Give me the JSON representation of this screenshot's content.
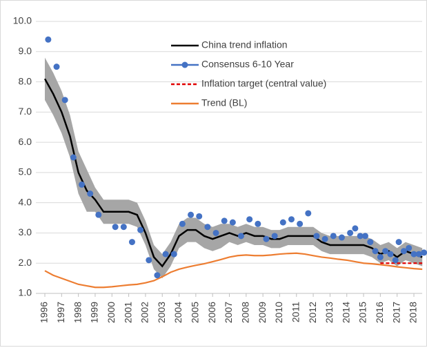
{
  "chart_data": {
    "type": "line",
    "ylim": [
      1,
      10
    ],
    "yticks": [
      {
        "value": 1,
        "label": "1.0"
      },
      {
        "value": 2,
        "label": "2.0"
      },
      {
        "value": 3,
        "label": "3.0"
      },
      {
        "value": 4,
        "label": "4.0"
      },
      {
        "value": 5,
        "label": "5.0"
      },
      {
        "value": 6,
        "label": "6.0"
      },
      {
        "value": 7,
        "label": "7.0"
      },
      {
        "value": 8,
        "label": "8.0"
      },
      {
        "value": 9,
        "label": "9.0"
      },
      {
        "value": 10,
        "label": "10.0"
      }
    ],
    "xlim": [
      1996,
      2018
    ],
    "xticks": [
      1996,
      1997,
      1998,
      1999,
      2000,
      2001,
      2002,
      2003,
      2004,
      2005,
      2006,
      2007,
      2008,
      2009,
      2010,
      2011,
      2012,
      2013,
      2014,
      2015,
      2016,
      2017,
      2018
    ],
    "grid": true,
    "band": {
      "color": "#a6a6a6",
      "x": [
        1996,
        1996.5,
        1997,
        1997.5,
        1998,
        1998.5,
        1999,
        1999.5,
        2000,
        2000.5,
        2001,
        2001.5,
        2002,
        2002.5,
        2003,
        2003.5,
        2004,
        2004.5,
        2005,
        2005.5,
        2006,
        2006.5,
        2007,
        2007.5,
        2008,
        2008.5,
        2009,
        2009.5,
        2010,
        2010.5,
        2011,
        2011.5,
        2012,
        2012.5,
        2013,
        2013.5,
        2014,
        2014.5,
        2015,
        2015.5,
        2016,
        2016.5,
        2017,
        2017.5,
        2018,
        2018.5
      ],
      "upper": [
        8.8,
        8.3,
        7.7,
        6.9,
        5.7,
        5.1,
        4.5,
        4.1,
        4.1,
        4.1,
        4.1,
        4.0,
        3.4,
        2.6,
        2.3,
        2.7,
        3.3,
        3.5,
        3.5,
        3.3,
        3.2,
        3.3,
        3.3,
        3.2,
        3.3,
        3.2,
        3.2,
        3.1,
        3.1,
        3.2,
        3.2,
        3.2,
        3.2,
        3.0,
        2.9,
        2.9,
        2.9,
        2.9,
        2.9,
        2.8,
        2.6,
        2.7,
        2.5,
        2.7,
        2.6,
        2.5
      ],
      "lower": [
        7.4,
        6.9,
        6.3,
        5.5,
        4.3,
        3.7,
        3.7,
        3.3,
        3.3,
        3.3,
        3.3,
        3.2,
        2.6,
        1.8,
        1.5,
        1.9,
        2.5,
        2.7,
        2.7,
        2.5,
        2.4,
        2.5,
        2.7,
        2.6,
        2.7,
        2.6,
        2.6,
        2.5,
        2.5,
        2.6,
        2.6,
        2.6,
        2.6,
        2.4,
        2.3,
        2.3,
        2.3,
        2.3,
        2.3,
        2.2,
        2.0,
        2.1,
        1.9,
        2.1,
        2.0,
        1.9
      ]
    },
    "series": [
      {
        "name": "China trend inflation",
        "color": "#000000",
        "style": "solid",
        "x": [
          1996,
          1996.5,
          1997,
          1997.5,
          1998,
          1998.5,
          1999,
          1999.5,
          2000,
          2000.5,
          2001,
          2001.5,
          2002,
          2002.5,
          2003,
          2003.5,
          2004,
          2004.5,
          2005,
          2005.5,
          2006,
          2006.5,
          2007,
          2007.5,
          2008,
          2008.5,
          2009,
          2009.5,
          2010,
          2010.5,
          2011,
          2011.5,
          2012,
          2012.5,
          2013,
          2013.5,
          2014,
          2014.5,
          2015,
          2015.5,
          2016,
          2016.5,
          2017,
          2017.5,
          2018,
          2018.5
        ],
        "values": [
          8.1,
          7.6,
          7.0,
          6.2,
          5.0,
          4.4,
          4.1,
          3.7,
          3.7,
          3.7,
          3.7,
          3.6,
          3.0,
          2.2,
          1.9,
          2.3,
          2.9,
          3.1,
          3.1,
          2.9,
          2.8,
          2.9,
          3.0,
          2.9,
          3.0,
          2.9,
          2.9,
          2.8,
          2.8,
          2.9,
          2.9,
          2.9,
          2.9,
          2.7,
          2.6,
          2.6,
          2.6,
          2.6,
          2.6,
          2.5,
          2.3,
          2.4,
          2.2,
          2.4,
          2.3,
          2.2
        ]
      },
      {
        "name": "Consensus 6-10 Year",
        "color": "#4472c4",
        "style": "markers",
        "x": [
          1996.2,
          1996.7,
          1997.2,
          1997.7,
          1998.2,
          1998.7,
          1999.2,
          2000.2,
          2000.7,
          2001.2,
          2001.7,
          2002.2,
          2002.7,
          2003.2,
          2003.7,
          2004.2,
          2004.7,
          2005.2,
          2005.7,
          2006.2,
          2006.7,
          2007.2,
          2007.7,
          2008.2,
          2008.7,
          2009.2,
          2009.7,
          2010.2,
          2010.7,
          2011.2,
          2011.7,
          2012.2,
          2012.7,
          2013.2,
          2013.7,
          2014.2,
          2014.5,
          2014.8,
          2015.1,
          2015.4,
          2015.7,
          2016.0,
          2016.3,
          2016.6,
          2016.9,
          2017.1,
          2017.4,
          2017.7,
          2018.0,
          2018.3,
          2018.6
        ],
        "values": [
          9.4,
          8.5,
          7.4,
          5.5,
          4.6,
          4.3,
          3.6,
          3.2,
          3.2,
          2.7,
          3.1,
          2.1,
          1.6,
          2.3,
          2.3,
          3.3,
          3.6,
          3.55,
          3.2,
          3.0,
          3.4,
          3.35,
          2.9,
          3.45,
          3.3,
          2.8,
          2.9,
          3.35,
          3.45,
          3.3,
          3.65,
          2.9,
          2.8,
          2.9,
          2.85,
          3.0,
          3.15,
          2.9,
          2.9,
          2.7,
          2.4,
          2.2,
          2.4,
          2.3,
          2.1,
          2.7,
          2.4,
          2.5,
          2.3,
          2.3,
          2.35
        ]
      },
      {
        "name": "Inflation target (central value)",
        "color": "#e00000",
        "style": "dashed",
        "x": [
          2016,
          2018.5
        ],
        "values": [
          2.0,
          2.0
        ]
      },
      {
        "name": "Trend (BL)",
        "color": "#ed7d31",
        "style": "solid",
        "x": [
          1996,
          1996.5,
          1997,
          1997.5,
          1998,
          1998.5,
          1999,
          1999.5,
          2000,
          2000.5,
          2001,
          2001.5,
          2002,
          2002.5,
          2003,
          2003.5,
          2004,
          2004.5,
          2005,
          2005.5,
          2006,
          2006.5,
          2007,
          2007.5,
          2008,
          2008.5,
          2009,
          2009.5,
          2010,
          2010.5,
          2011,
          2011.5,
          2012,
          2012.5,
          2013,
          2013.5,
          2014,
          2014.5,
          2015,
          2015.5,
          2016,
          2016.5,
          2017,
          2017.5,
          2018,
          2018.5
        ],
        "values": [
          1.75,
          1.6,
          1.5,
          1.4,
          1.3,
          1.25,
          1.2,
          1.2,
          1.22,
          1.25,
          1.28,
          1.3,
          1.35,
          1.42,
          1.55,
          1.7,
          1.8,
          1.87,
          1.93,
          1.98,
          2.05,
          2.12,
          2.2,
          2.25,
          2.27,
          2.25,
          2.25,
          2.27,
          2.3,
          2.32,
          2.33,
          2.3,
          2.25,
          2.2,
          2.17,
          2.13,
          2.1,
          2.05,
          2.0,
          1.98,
          1.95,
          1.92,
          1.88,
          1.85,
          1.82,
          1.8
        ]
      }
    ]
  }
}
